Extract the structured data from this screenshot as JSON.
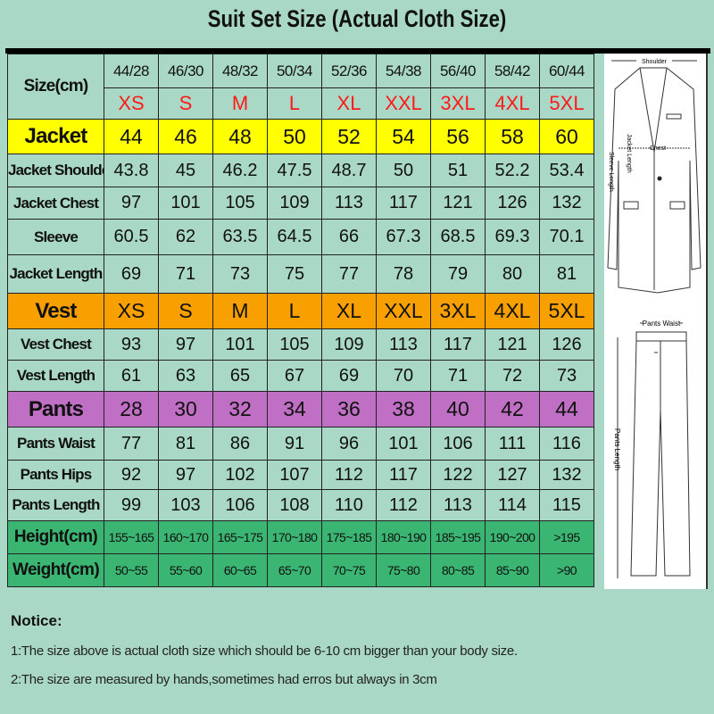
{
  "title": "Suit Set Size (Actual Cloth Size)",
  "colors": {
    "background": "#a9d9c6",
    "jacket": "#ffff00",
    "vest": "#f7a000",
    "pants": "#c070c4",
    "body": "#3bb572",
    "size_letters": "#ff1a1a"
  },
  "table": {
    "size_label": "Size(cm)",
    "numeric_sizes": [
      "44/28",
      "46/30",
      "48/32",
      "50/34",
      "52/36",
      "54/38",
      "56/40",
      "58/42",
      "60/44"
    ],
    "letter_sizes": [
      "XS",
      "S",
      "M",
      "L",
      "XL",
      "XXL",
      "3XL",
      "4XL",
      "5XL"
    ],
    "rows": [
      {
        "label": "Jacket",
        "type": "section-yellow",
        "values": [
          "44",
          "46",
          "48",
          "50",
          "52",
          "54",
          "56",
          "58",
          "60"
        ]
      },
      {
        "label": "Jacket Shoulder",
        "type": "plain",
        "values": [
          "43.8",
          "45",
          "46.2",
          "47.5",
          "48.7",
          "50",
          "51",
          "52.2",
          "53.4"
        ]
      },
      {
        "label": "Jacket Chest",
        "type": "plain",
        "values": [
          "97",
          "101",
          "105",
          "109",
          "113",
          "117",
          "121",
          "126",
          "132"
        ]
      },
      {
        "label": "Sleeve",
        "type": "plain",
        "values": [
          "60.5",
          "62",
          "63.5",
          "64.5",
          "66",
          "67.3",
          "68.5",
          "69.3",
          "70.1"
        ]
      },
      {
        "label": "Jacket Length",
        "type": "plain",
        "values": [
          "69",
          "71",
          "73",
          "75",
          "77",
          "78",
          "79",
          "80",
          "81"
        ]
      },
      {
        "label": "Vest",
        "type": "section-orange",
        "values": [
          "XS",
          "S",
          "M",
          "L",
          "XL",
          "XXL",
          "3XL",
          "4XL",
          "5XL"
        ]
      },
      {
        "label": "Vest Chest",
        "type": "plain",
        "values": [
          "93",
          "97",
          "101",
          "105",
          "109",
          "113",
          "117",
          "121",
          "126"
        ]
      },
      {
        "label": "Vest Length",
        "type": "plain",
        "values": [
          "61",
          "63",
          "65",
          "67",
          "69",
          "70",
          "71",
          "72",
          "73"
        ]
      },
      {
        "label": "Pants",
        "type": "section-purple",
        "values": [
          "28",
          "30",
          "32",
          "34",
          "36",
          "38",
          "40",
          "42",
          "44"
        ]
      },
      {
        "label": "Pants Waist",
        "type": "plain",
        "values": [
          "77",
          "81",
          "86",
          "91",
          "96",
          "101",
          "106",
          "111",
          "116"
        ]
      },
      {
        "label": "Pants Hips",
        "type": "plain",
        "values": [
          "92",
          "97",
          "102",
          "107",
          "112",
          "117",
          "122",
          "127",
          "132"
        ]
      },
      {
        "label": "Pants Length",
        "type": "plain",
        "values": [
          "99",
          "103",
          "106",
          "108",
          "110",
          "112",
          "113",
          "114",
          "115"
        ]
      },
      {
        "label": "Height(cm)",
        "type": "green",
        "values": [
          "155~165",
          "160~170",
          "165~175",
          "170~180",
          "175~185",
          "180~190",
          "185~195",
          "190~200",
          ">195"
        ]
      },
      {
        "label": "Weight(cm)",
        "type": "green",
        "values": [
          "50~55",
          "55~60",
          "60~65",
          "65~70",
          "70~75",
          "75~80",
          "80~85",
          "85~90",
          ">90"
        ]
      }
    ]
  },
  "diagram": {
    "shoulder": "Shoulder",
    "chest": "Chest",
    "sleeve_length": "Sleeve Length",
    "jacket_length": "Jacket Length",
    "pants_waist": "Pants Waist",
    "pants_length": "Pants Length"
  },
  "notice": {
    "heading": "Notice:",
    "lines": [
      "1:The size above is actual cloth size which should be 6-10 cm bigger than your body size.",
      "2:The size are measured by hands,sometimes had erros but always in 3cm"
    ]
  }
}
